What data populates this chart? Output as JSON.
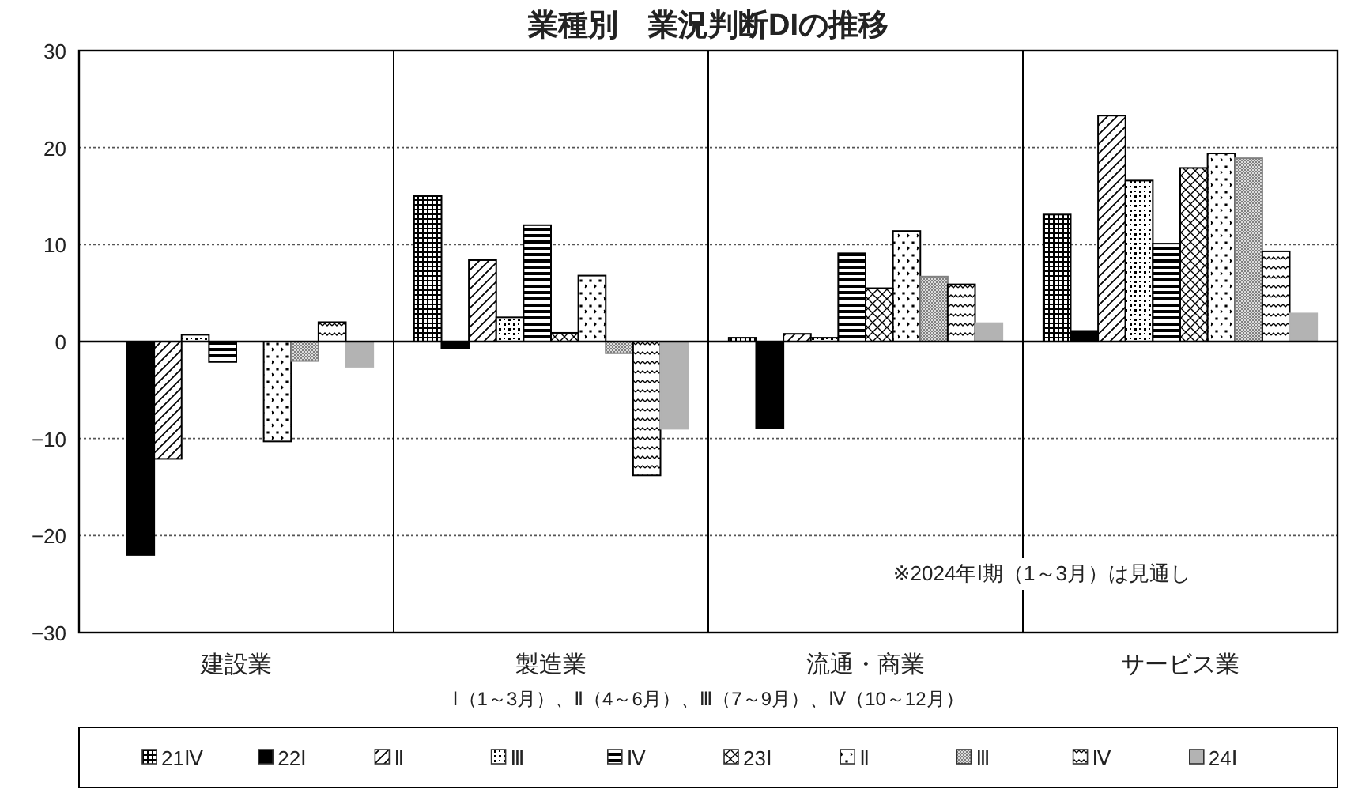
{
  "chart_data": {
    "type": "bar",
    "title": "業種別　業況判断DIの推移",
    "xlabel": "Ⅰ（1～3月）、Ⅱ（4～6月）、Ⅲ（7～9月）、Ⅳ（10～12月）",
    "annotations": [
      "※2024年Ⅰ期（1～3月）は見通し"
    ],
    "categories": [
      "建設業",
      "製造業",
      "流通・商業",
      "サービス業"
    ],
    "series": [
      {
        "name": "21Ⅳ",
        "color": "#000000",
        "values": [
          null,
          15.0,
          0.4,
          13.1
        ]
      },
      {
        "name": "22Ⅰ",
        "color": "#000000",
        "values": [
          -22.0,
          -0.7,
          -8.9,
          1.1
        ]
      },
      {
        "name": "Ⅱ",
        "color": "#000000",
        "values": [
          -12.1,
          8.4,
          0.8,
          23.3
        ]
      },
      {
        "name": "Ⅲ",
        "color": "#000000",
        "values": [
          0.7,
          2.5,
          0.4,
          16.6
        ]
      },
      {
        "name": "Ⅳ",
        "color": "#000000",
        "values": [
          -2.1,
          12.0,
          9.1,
          10.1
        ]
      },
      {
        "name": "23Ⅰ",
        "color": "#000000",
        "values": [
          null,
          0.9,
          5.5,
          17.9
        ]
      },
      {
        "name": "Ⅱ",
        "color": "#000000",
        "values": [
          -10.3,
          6.8,
          11.4,
          19.4
        ]
      },
      {
        "name": "Ⅲ",
        "color": "#808080",
        "values": [
          -2.0,
          -1.2,
          6.7,
          18.9
        ]
      },
      {
        "name": "Ⅳ",
        "color": "#000000",
        "values": [
          2.0,
          -13.8,
          5.9,
          9.3
        ]
      },
      {
        "name": "24Ⅰ",
        "color": "#b3b3b3",
        "values": [
          -2.6,
          -9.0,
          1.9,
          2.9
        ]
      }
    ],
    "ylim": [
      -30,
      30
    ],
    "yticks": [
      {
        "value": -30,
        "label": "−30"
      },
      {
        "value": -20,
        "label": "−20"
      },
      {
        "value": -10,
        "label": "−10"
      },
      0,
      10,
      20,
      30
    ],
    "grid": "y",
    "legend": "bottom"
  }
}
